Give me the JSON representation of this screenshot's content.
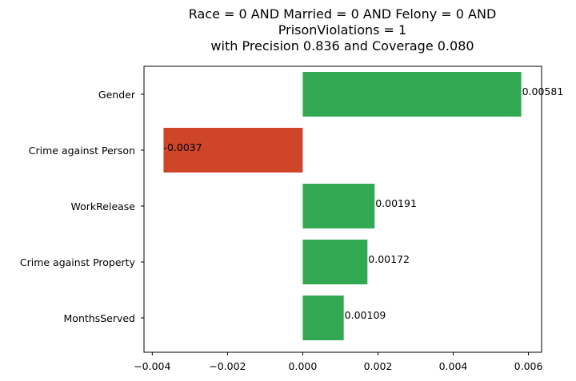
{
  "chart_data": {
    "type": "bar",
    "orientation": "horizontal",
    "title": [
      "Race = 0 AND Married = 0 AND Felony = 0 AND",
      "PrisonViolations = 1",
      "with Precision 0.836 and Coverage 0.080"
    ],
    "categories": [
      "Gender",
      "Crime against Person",
      "WorkRelease",
      "Crime against Property",
      "MonthsServed"
    ],
    "values": [
      0.00581,
      -0.0037,
      0.00191,
      0.00172,
      0.00109
    ],
    "value_labels": [
      "0.00581",
      "-0.0037",
      "0.00191",
      "0.00172",
      "0.00109"
    ],
    "x_ticks": [
      -0.004,
      -0.002,
      0.0,
      0.002,
      0.004,
      0.006
    ],
    "x_tick_labels": [
      "−0.004",
      "−0.002",
      "0.000",
      "0.002",
      "0.004",
      "0.006"
    ],
    "xlim": [
      -0.00422,
      0.00635
    ],
    "xlabel": "",
    "ylabel": "",
    "grid": false,
    "legend": false,
    "colors": {
      "positive": "#33a853",
      "negative": "#cf4527",
      "axis": "#000000"
    }
  }
}
